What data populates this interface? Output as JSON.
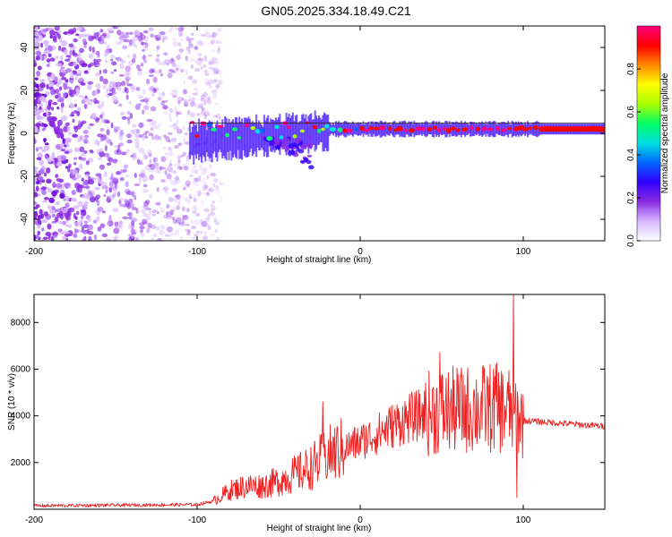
{
  "title": "GN05.2025.334.18.49.C21",
  "colors": {
    "snr_line": "#ee2222",
    "scatter": "#8a2be2",
    "colorbar": [
      "#ffffff",
      "#d8b8ff",
      "#8a2be2",
      "#3300ff",
      "#0066ff",
      "#00e0e0",
      "#00ff66",
      "#aaff00",
      "#ffff00",
      "#ff8800",
      "#ff0000",
      "#ff0080"
    ]
  },
  "chart_data": [
    {
      "type": "heatmap",
      "name": "spectrogram",
      "xlabel": "Height of straight line (km)",
      "ylabel": "Frequency (Hz)",
      "xlim": [
        -200,
        150
      ],
      "ylim": [
        -50,
        50
      ],
      "xticks": [
        -200,
        -100,
        0,
        100
      ],
      "yticks": [
        -40,
        -20,
        0,
        20,
        40
      ],
      "noise_region_km": [
        -200,
        -85
      ],
      "signal_start_km": -105,
      "signal_band_hz": 2,
      "colorbar": {
        "label": "Normalized spectral amplitude",
        "range": [
          0.0,
          1.0
        ],
        "ticks": [
          "0.0",
          "0.2",
          "0.4",
          "0.6",
          "0.8"
        ]
      }
    },
    {
      "type": "line",
      "name": "snr",
      "xlabel": "Height of straight line (km)",
      "ylabel": "SNR (10 * v/v)",
      "xlim": [
        -200,
        150
      ],
      "ylim": [
        0,
        9200
      ],
      "xticks": [
        -200,
        -100,
        0,
        100
      ],
      "yticks": [
        2000,
        4000,
        6000,
        8000
      ],
      "envelope": {
        "x": [
          -200,
          -100,
          -90,
          -80,
          -70,
          -60,
          -50,
          -40,
          -30,
          -20,
          -10,
          0,
          10,
          20,
          30,
          40,
          50,
          60,
          70,
          80,
          90,
          95,
          100,
          110,
          120,
          130,
          140,
          150
        ],
        "y": [
          150,
          200,
          350,
          800,
          1000,
          1000,
          1200,
          1500,
          1800,
          2300,
          2600,
          2900,
          3200,
          3600,
          3900,
          4100,
          4200,
          4250,
          4300,
          4350,
          4300,
          4100,
          3800,
          3750,
          3700,
          3650,
          3600,
          3550
        ]
      },
      "spikes": [
        {
          "x": -23,
          "y": 4600
        },
        {
          "x": 49,
          "y": 6700
        },
        {
          "x": 83,
          "y": 6200
        },
        {
          "x": 94,
          "y": 9200
        },
        {
          "x": 96,
          "y": 500
        }
      ]
    }
  ]
}
